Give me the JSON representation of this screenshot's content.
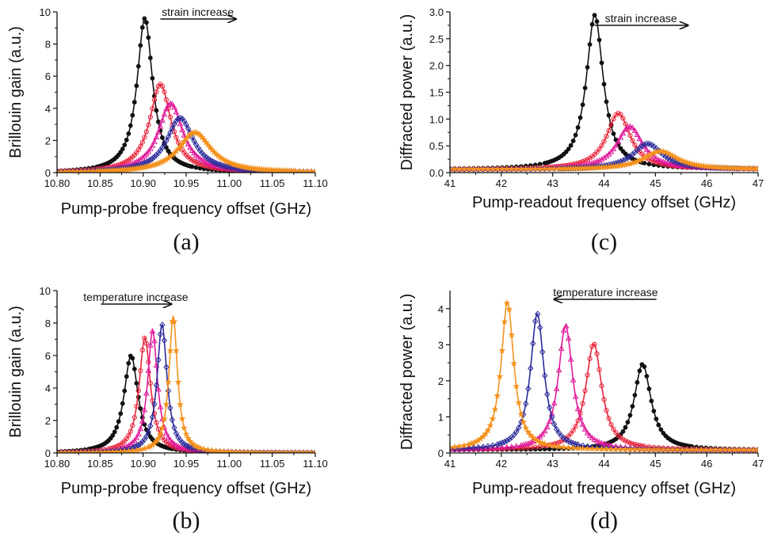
{
  "chart_data": [
    {
      "panel": "(a)",
      "type": "scatter",
      "xlabel": "Pump-probe frequency offset (GHz)",
      "ylabel": "Brillouin gain (a.u.)",
      "xlim": [
        10.8,
        11.1
      ],
      "ylim": [
        0,
        10
      ],
      "xticks": [
        "10.80",
        "10.85",
        "10.90",
        "10.95",
        "11.00",
        "11.05",
        "11.10"
      ],
      "yticks": [
        "0",
        "2",
        "4",
        "6",
        "8",
        "10"
      ],
      "annotation": {
        "text": "strain increase",
        "direction": "right"
      },
      "series": [
        {
          "color": "#111111",
          "marker": "filled-circle",
          "center": 10.902,
          "peak": 9.6,
          "width": 0.011
        },
        {
          "color": "#e8243a",
          "marker": "open-circle",
          "center": 10.92,
          "peak": 5.5,
          "width": 0.015
        },
        {
          "color": "#e0189a",
          "marker": "open-triangle",
          "center": 10.932,
          "peak": 4.3,
          "width": 0.017
        },
        {
          "color": "#2a2a9a",
          "marker": "open-diamond",
          "center": 10.943,
          "peak": 3.4,
          "width": 0.019
        },
        {
          "color": "#f4921e",
          "marker": "filled-star",
          "center": 10.96,
          "peak": 2.5,
          "width": 0.023
        }
      ]
    },
    {
      "panel": "(b)",
      "type": "scatter",
      "xlabel": "Pump-probe frequency offset (GHz)",
      "ylabel": "Brillouin gain (a.u.)",
      "xlim": [
        10.8,
        11.1
      ],
      "ylim": [
        0,
        10
      ],
      "xticks": [
        "10.80",
        "10.85",
        "10.90",
        "10.95",
        "11.00",
        "11.05",
        "11.10"
      ],
      "yticks": [
        "0",
        "2",
        "4",
        "6",
        "8",
        "10"
      ],
      "annotation": {
        "text": "temperature increase",
        "direction": "right"
      },
      "series": [
        {
          "color": "#111111",
          "marker": "filled-circle",
          "center": 10.886,
          "peak": 6.0,
          "width": 0.01
        },
        {
          "color": "#e8243a",
          "marker": "open-circle",
          "center": 10.902,
          "peak": 7.1,
          "width": 0.008
        },
        {
          "color": "#e0189a",
          "marker": "open-triangle",
          "center": 10.911,
          "peak": 7.5,
          "width": 0.007
        },
        {
          "color": "#2a2a9a",
          "marker": "open-diamond",
          "center": 10.922,
          "peak": 7.9,
          "width": 0.007
        },
        {
          "color": "#f4921e",
          "marker": "filled-star",
          "center": 10.935,
          "peak": 8.4,
          "width": 0.006
        }
      ]
    },
    {
      "panel": "(c)",
      "type": "scatter",
      "xlabel": "Pump-readout frequency offset (GHz)",
      "ylabel": "Diffracted power (a.u.)",
      "xlim": [
        41,
        47
      ],
      "ylim": [
        0,
        3.0
      ],
      "xticks": [
        "41",
        "42",
        "43",
        "44",
        "45",
        "46",
        "47"
      ],
      "yticks": [
        "0.0",
        "0.5",
        "1.0",
        "1.5",
        "2.0",
        "2.5",
        "3.0"
      ],
      "annotation": {
        "text": "strain increase",
        "direction": "right"
      },
      "series": [
        {
          "color": "#111111",
          "marker": "filled-circle",
          "center": 43.82,
          "peak": 2.88,
          "width": 0.2,
          "base": 0.06
        },
        {
          "color": "#e8243a",
          "marker": "open-circle",
          "center": 44.28,
          "peak": 1.05,
          "width": 0.28,
          "base": 0.06
        },
        {
          "color": "#e0189a",
          "marker": "open-triangle",
          "center": 44.5,
          "peak": 0.8,
          "width": 0.3,
          "base": 0.06
        },
        {
          "color": "#2a2a9a",
          "marker": "open-diamond",
          "center": 44.85,
          "peak": 0.48,
          "width": 0.35,
          "base": 0.06
        },
        {
          "color": "#f4921e",
          "marker": "filled-star",
          "center": 45.1,
          "peak": 0.34,
          "width": 0.4,
          "base": 0.06
        }
      ]
    },
    {
      "panel": "(d)",
      "type": "scatter",
      "xlabel": "Pump-readout frequency offset (GHz)",
      "ylabel": "Diffracted power (a.u.)",
      "xlim": [
        41,
        47
      ],
      "ylim": [
        0,
        4.5
      ],
      "xticks": [
        "41",
        "42",
        "43",
        "44",
        "45",
        "46",
        "47"
      ],
      "yticks": [
        "0",
        "1",
        "2",
        "3",
        "4"
      ],
      "annotation": {
        "text": "temperature increase",
        "direction": "left"
      },
      "series": [
        {
          "color": "#111111",
          "marker": "filled-circle",
          "center": 44.75,
          "peak": 2.38,
          "width": 0.2,
          "base": 0.08
        },
        {
          "color": "#e8243a",
          "marker": "open-circle",
          "center": 43.8,
          "peak": 2.95,
          "width": 0.19,
          "base": 0.08
        },
        {
          "color": "#e0189a",
          "marker": "open-triangle",
          "center": 43.25,
          "peak": 3.45,
          "width": 0.17,
          "base": 0.08
        },
        {
          "color": "#2a2a9a",
          "marker": "open-diamond",
          "center": 42.7,
          "peak": 3.78,
          "width": 0.16,
          "base": 0.08
        },
        {
          "color": "#f4921e",
          "marker": "filled-star",
          "center": 42.12,
          "peak": 4.1,
          "width": 0.15,
          "base": 0.08
        }
      ]
    }
  ]
}
